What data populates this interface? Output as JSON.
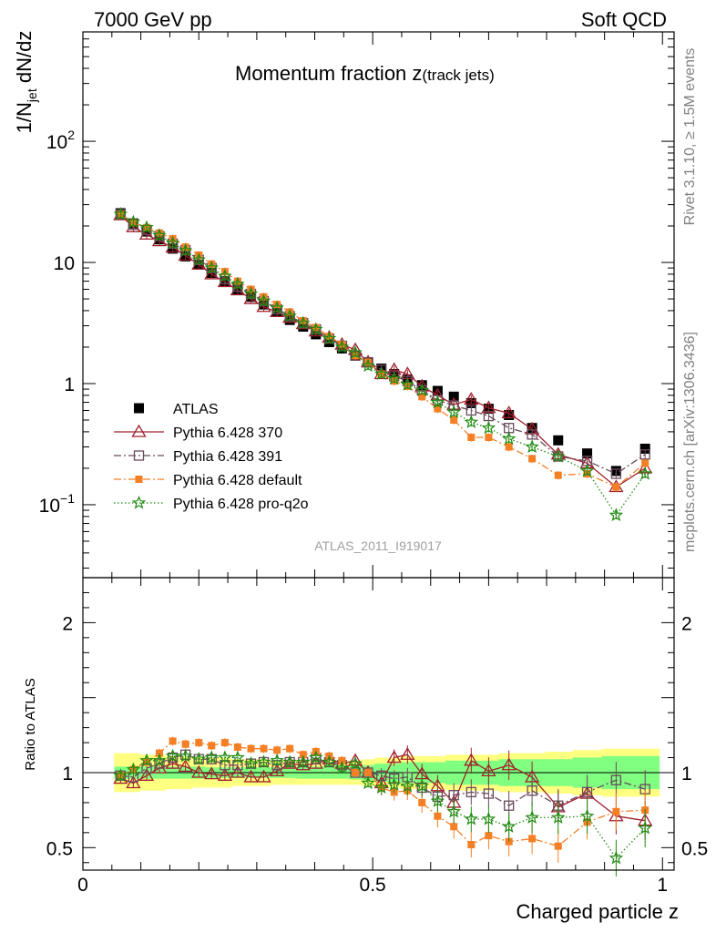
{
  "header": {
    "left": "7000 GeV pp",
    "right": "Soft QCD"
  },
  "side_text": {
    "rivet": "Rivet 3.1.10, ≥ 1.5M events",
    "mcplots": "mcplots.cern.ch [arXiv:1306.3436]"
  },
  "analysis_label": "ATLAS_2011_I919017",
  "colors": {
    "ATLAS": "#000000",
    "p370": "#a0202c",
    "p391": "#6a4a5c",
    "pdefault": "#f47f24",
    "pq2o": "#1f8a10",
    "band_inner": "#80ff80",
    "band_outer": "#ffff80"
  },
  "chart_data": [
    {
      "type": "scatter",
      "title": "Momentum fraction z(track jets)",
      "title_main": "Momentum fraction z",
      "title_sub": "(track jets)",
      "ylabel_main": "1/N",
      "ylabel_sub": "jet",
      "ylabel_rest": " dN/dz",
      "yscale": "log",
      "xlim": [
        0,
        1.02
      ],
      "ylim": [
        0.025,
        800
      ],
      "x_ticks": [
        0,
        0.5,
        1
      ],
      "y_tick_labels": [
        {
          "value": 0.1,
          "base": "10",
          "exp": "−1"
        },
        {
          "value": 1,
          "base": "1",
          "exp": ""
        },
        {
          "value": 10,
          "base": "10",
          "exp": ""
        },
        {
          "value": 100,
          "base": "10",
          "exp": "2"
        }
      ],
      "x": [
        0.065,
        0.087,
        0.11,
        0.132,
        0.155,
        0.177,
        0.2,
        0.222,
        0.245,
        0.267,
        0.29,
        0.312,
        0.335,
        0.357,
        0.38,
        0.402,
        0.425,
        0.447,
        0.47,
        0.492,
        0.515,
        0.537,
        0.56,
        0.585,
        0.612,
        0.64,
        0.67,
        0.7,
        0.735,
        0.775,
        0.82,
        0.87,
        0.92,
        0.97
      ],
      "series": [
        {
          "name": "ATLAS",
          "marker": "square-filled",
          "values": [
            25.5,
            21.0,
            18.0,
            15.5,
            13.0,
            11.2,
            9.6,
            8.2,
            7.0,
            6.0,
            5.2,
            4.5,
            3.9,
            3.35,
            2.95,
            2.55,
            2.2,
            1.95,
            1.7,
            1.5,
            1.33,
            1.2,
            1.08,
            0.97,
            0.87,
            0.78,
            0.69,
            0.62,
            0.55,
            0.43,
            0.34,
            0.265,
            0.19,
            0.29
          ]
        },
        {
          "name": "Pythia 6.428 370",
          "marker": "triangle-open",
          "line": "solid",
          "values": [
            24.6,
            19.6,
            17.0,
            15.0,
            13.3,
            11.4,
            9.6,
            8.0,
            6.9,
            5.9,
            5.0,
            4.3,
            3.9,
            3.5,
            3.1,
            2.7,
            2.4,
            2.1,
            1.9,
            1.5,
            1.2,
            1.3,
            1.2,
            0.95,
            0.8,
            0.67,
            0.74,
            0.63,
            0.57,
            0.42,
            0.26,
            0.22,
            0.14,
            0.2
          ]
        },
        {
          "name": "Pythia 6.428 391",
          "marker": "square-open",
          "line": "dashdot",
          "values": [
            25.0,
            20.5,
            18.5,
            16.5,
            14.3,
            12.6,
            10.5,
            9.0,
            7.3,
            6.3,
            5.5,
            4.8,
            4.1,
            3.6,
            3.15,
            2.8,
            2.35,
            2.05,
            1.7,
            1.5,
            1.3,
            1.15,
            1.05,
            0.88,
            0.73,
            0.66,
            0.6,
            0.54,
            0.43,
            0.38,
            0.25,
            0.23,
            0.18,
            0.26
          ]
        },
        {
          "name": "Pythia 6.428 default",
          "marker": "square-filled-small",
          "line": "dashdot",
          "values": [
            25.0,
            21.3,
            19.4,
            17.5,
            15.7,
            13.4,
            11.5,
            9.7,
            8.4,
            7.0,
            6.0,
            5.2,
            4.5,
            3.9,
            3.3,
            2.9,
            2.45,
            2.1,
            1.7,
            1.5,
            1.2,
            1.05,
            0.95,
            0.78,
            0.62,
            0.5,
            0.36,
            0.36,
            0.3,
            0.24,
            0.175,
            0.18,
            0.14,
            0.22
          ]
        },
        {
          "name": "Pythia 6.428 pro-q2o",
          "marker": "star",
          "line": "dotted",
          "values": [
            25.0,
            21.5,
            19.4,
            16.7,
            14.4,
            12.5,
            10.5,
            9.0,
            7.7,
            6.6,
            5.5,
            4.8,
            4.2,
            3.6,
            3.15,
            2.8,
            2.35,
            2.0,
            1.8,
            1.4,
            1.2,
            1.1,
            0.98,
            0.88,
            0.7,
            0.58,
            0.48,
            0.43,
            0.35,
            0.3,
            0.25,
            0.19,
            0.082,
            0.18
          ]
        }
      ],
      "legend": {
        "placement": "bottom-left"
      }
    },
    {
      "type": "scatter",
      "ylabel": "Ratio to ATLAS",
      "xlabel": "Charged particle z",
      "xlim": [
        0,
        1.02
      ],
      "ylim": [
        0.35,
        2.3
      ],
      "y_ticks": [
        0.5,
        1,
        2
      ],
      "reference_line": 1,
      "band_inner_halfwidth": [
        0.04,
        0.04,
        0.04,
        0.04,
        0.04,
        0.04,
        0.04,
        0.035,
        0.035,
        0.035,
        0.035,
        0.035,
        0.035,
        0.035,
        0.04,
        0.04,
        0.04,
        0.04,
        0.045,
        0.05,
        0.06,
        0.06,
        0.07,
        0.07,
        0.07,
        0.08,
        0.08,
        0.08,
        0.09,
        0.09,
        0.09,
        0.1,
        0.11,
        0.11
      ],
      "band_outer_halfwidth": [
        0.13,
        0.13,
        0.12,
        0.12,
        0.11,
        0.11,
        0.1,
        0.1,
        0.1,
        0.09,
        0.09,
        0.09,
        0.08,
        0.08,
        0.08,
        0.08,
        0.08,
        0.08,
        0.08,
        0.09,
        0.1,
        0.1,
        0.11,
        0.11,
        0.11,
        0.12,
        0.12,
        0.12,
        0.13,
        0.13,
        0.14,
        0.15,
        0.16,
        0.16
      ],
      "series": [
        {
          "name": "Pythia 6.428 370",
          "values": [
            0.96,
            0.93,
            0.98,
            1.03,
            1.06,
            1.04,
            1.0,
            0.99,
            0.98,
            1.0,
            0.97,
            0.97,
            1.01,
            1.06,
            1.05,
            1.06,
            1.09,
            1.06,
            1.08,
            1.0,
            0.93,
            1.1,
            1.12,
            0.99,
            0.91,
            0.8,
            1.08,
            1.01,
            1.05,
            0.97,
            0.77,
            0.86,
            0.71,
            0.68
          ]
        },
        {
          "name": "Pythia 6.428 391",
          "values": [
            0.98,
            0.97,
            1.03,
            1.06,
            1.1,
            1.12,
            1.09,
            1.09,
            1.05,
            1.05,
            1.06,
            1.07,
            1.05,
            1.07,
            1.07,
            1.09,
            1.07,
            1.05,
            1.0,
            1.0,
            0.98,
            0.96,
            0.97,
            0.9,
            0.84,
            0.85,
            0.87,
            0.86,
            0.78,
            0.88,
            0.78,
            0.87,
            0.95,
            0.89
          ]
        },
        {
          "name": "Pythia 6.428 default",
          "values": [
            0.98,
            1.02,
            1.07,
            1.13,
            1.21,
            1.19,
            1.2,
            1.18,
            1.2,
            1.17,
            1.16,
            1.16,
            1.15,
            1.16,
            1.12,
            1.14,
            1.11,
            1.08,
            1.0,
            1.0,
            0.9,
            0.87,
            0.88,
            0.8,
            0.71,
            0.64,
            0.52,
            0.58,
            0.54,
            0.56,
            0.51,
            0.67,
            0.74,
            0.75
          ]
        },
        {
          "name": "Pythia 6.428 pro-q2o",
          "values": [
            0.98,
            1.02,
            1.08,
            1.08,
            1.11,
            1.11,
            1.09,
            1.1,
            1.1,
            1.1,
            1.06,
            1.07,
            1.08,
            1.07,
            1.07,
            1.1,
            1.07,
            1.03,
            1.06,
            0.93,
            0.9,
            0.92,
            0.91,
            0.91,
            0.81,
            0.74,
            0.69,
            0.69,
            0.64,
            0.7,
            0.7,
            0.71,
            0.43,
            0.63
          ]
        }
      ]
    }
  ]
}
